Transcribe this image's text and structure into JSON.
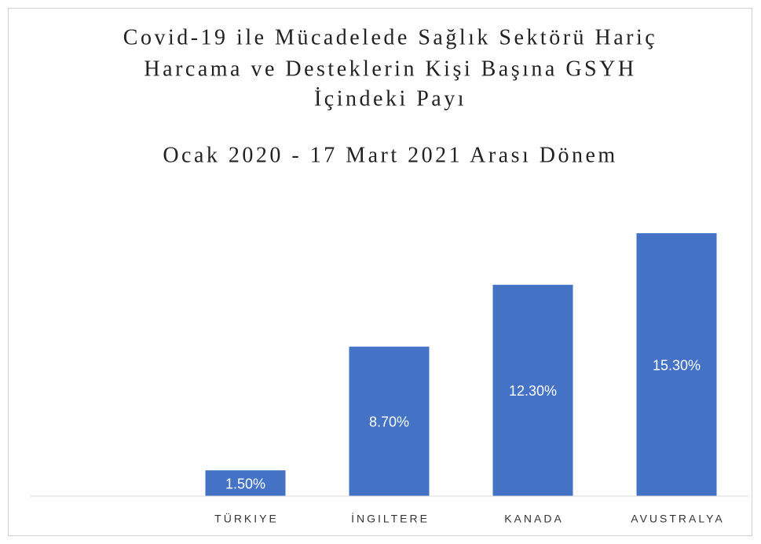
{
  "chart_data": {
    "type": "bar",
    "title": [
      "Covid-19 ile Mücadelede Sağlık Sektörü Hariç",
      "Harcama ve Desteklerin Kişi Başına GSYH",
      "İçindeki Payı"
    ],
    "subtitle": "Ocak 2020 - 17 Mart 2021 Arası Dönem",
    "categories": [
      null,
      "TÜRKIYE",
      "İNGILTERE",
      "KANADA",
      "AVUSTRALYA"
    ],
    "values": [
      null,
      1.5,
      8.7,
      12.3,
      15.3
    ],
    "value_labels": [
      null,
      "1.50%",
      "8.70%",
      "12.30%",
      "15.30%"
    ],
    "color": "#4472c4",
    "ylim": [
      0,
      18
    ]
  }
}
